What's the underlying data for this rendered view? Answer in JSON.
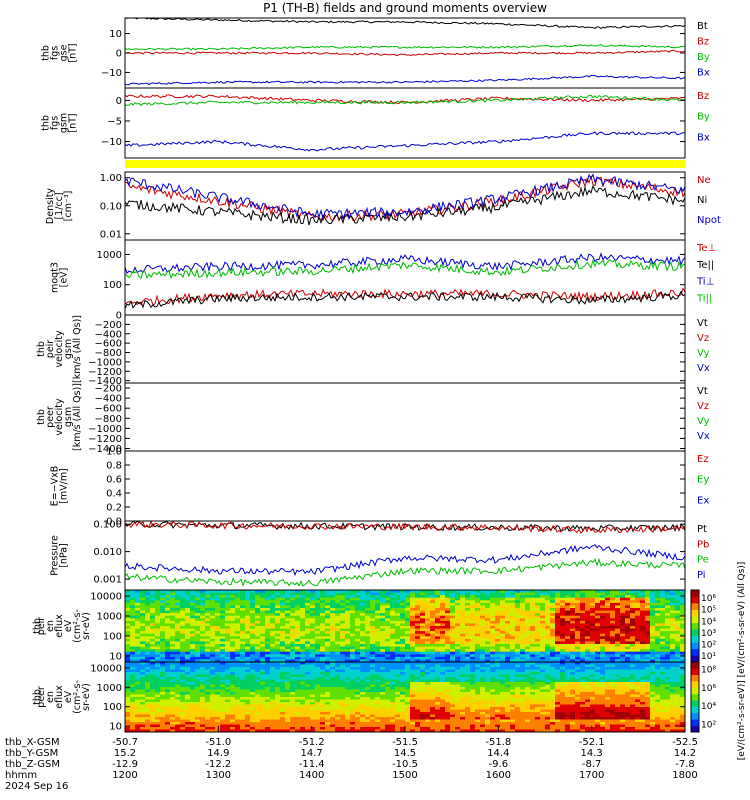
{
  "title": "P1 (TH-B) fields and ground moments overview",
  "panels": [
    {
      "id": "fgs-gse",
      "ylabel": [
        "thb",
        "fgs",
        "gse",
        "[nT]"
      ],
      "ticks": [
        "10",
        "0",
        "−10"
      ],
      "tick_values": [
        10,
        0,
        -10
      ],
      "ylim": [
        -18,
        18
      ],
      "legend": [
        {
          "label": "Bt",
          "color": "#000000"
        },
        {
          "label": "Bz",
          "color": "#cc0000"
        },
        {
          "label": "By",
          "color": "#00bb00"
        },
        {
          "label": "Bx",
          "color": "#0000cc"
        }
      ]
    },
    {
      "id": "fgs-gsm",
      "ylabel": [
        "thb",
        "fgs",
        "gsm",
        "[nT]"
      ],
      "ticks": [
        "0",
        "−5",
        "−10"
      ],
      "tick_values": [
        0,
        -5,
        -10
      ],
      "ylim": [
        -14,
        3
      ],
      "legend": [
        {
          "label": "Bz",
          "color": "#cc0000"
        },
        {
          "label": "By",
          "color": "#00bb00"
        },
        {
          "label": "Bx",
          "color": "#0000cc"
        }
      ]
    },
    {
      "id": "density",
      "ylabel": [
        "Density",
        "[1/cc]",
        "[cm⁻³]"
      ],
      "ticks": [
        "1.00",
        "0.10",
        "0.01"
      ],
      "tick_values": [
        1.0,
        0.1,
        0.01
      ],
      "scale": "log",
      "ylim": [
        0.006,
        1.6
      ],
      "legend": [
        {
          "label": "Ne",
          "color": "#cc0000"
        },
        {
          "label": "Ni",
          "color": "#000000"
        },
        {
          "label": "Npot",
          "color": "#0000cc"
        }
      ]
    },
    {
      "id": "temperature",
      "ylabel": [
        "moqt3",
        "[eV]"
      ],
      "ticks": [
        "1000",
        "100"
      ],
      "tick_values": [
        1000,
        100
      ],
      "scale": "log",
      "ylim": [
        10,
        3000
      ],
      "legend": [
        {
          "label": "Te⊥",
          "color": "#cc0000"
        },
        {
          "label": "Te||",
          "color": "#000000"
        },
        {
          "label": "Ti⊥",
          "color": "#0000cc"
        },
        {
          "label": "Ti||",
          "color": "#00bb00"
        }
      ]
    },
    {
      "id": "peir-velocity",
      "ylabel": [
        "thb",
        "peir",
        "velocity",
        "gsm",
        "[km/s (All Qs)]"
      ],
      "ticks": [
        "0",
        "−200",
        "−400",
        "−600",
        "−800",
        "−1000",
        "−1200",
        "−1400"
      ],
      "tick_values": [
        0,
        -200,
        -400,
        -600,
        -800,
        -1000,
        -1200,
        -1400
      ],
      "ylim": [
        -1450,
        0
      ],
      "legend": [
        {
          "label": "Vt",
          "color": "#000000"
        },
        {
          "label": "Vz",
          "color": "#cc0000"
        },
        {
          "label": "Vy",
          "color": "#00bb00"
        },
        {
          "label": "Vx",
          "color": "#0000cc"
        }
      ]
    },
    {
      "id": "peer-velocity",
      "ylabel": [
        "thb",
        "peer",
        "velocity",
        "gsm",
        "[km/s (All Qs)]"
      ],
      "ticks": [
        "−200",
        "−400",
        "−600",
        "−800",
        "−1000",
        "−1200",
        "−1400"
      ],
      "tick_values": [
        -200,
        -400,
        -600,
        -800,
        -1000,
        -1200,
        -1400
      ],
      "ylim": [
        -1450,
        -100
      ],
      "legend": [
        {
          "label": "Vt",
          "color": "#000000"
        },
        {
          "label": "Vz",
          "color": "#cc0000"
        },
        {
          "label": "Vy",
          "color": "#00bb00"
        },
        {
          "label": "Vx",
          "color": "#0000cc"
        }
      ]
    },
    {
      "id": "efield",
      "ylabel": [
        "E=−VxB",
        "[mV/m]"
      ],
      "ticks": [
        "1.0",
        "0.8",
        "0.6",
        "0.4",
        "0.2",
        "0.0"
      ],
      "tick_values": [
        1.0,
        0.8,
        0.6,
        0.4,
        0.2,
        0.0
      ],
      "ylim": [
        0,
        1.0
      ],
      "legend": [
        {
          "label": "Ez",
          "color": "#cc0000"
        },
        {
          "label": "Ey",
          "color": "#00bb00"
        },
        {
          "label": "Ex",
          "color": "#0000cc"
        }
      ]
    },
    {
      "id": "pressure",
      "ylabel": [
        "Pressure",
        "[nPa]"
      ],
      "ticks": [
        "0.100",
        "0.010",
        "0.001"
      ],
      "tick_values": [
        0.1,
        0.01,
        0.001
      ],
      "scale": "log",
      "ylim": [
        0.0004,
        0.13
      ],
      "legend": [
        {
          "label": "Pt",
          "color": "#000000"
        },
        {
          "label": "Pb",
          "color": "#cc0000"
        },
        {
          "label": "Pe",
          "color": "#00bb00"
        },
        {
          "label": "Pi",
          "color": "#0000cc"
        }
      ]
    },
    {
      "id": "peir-spectrogram",
      "ylabel": [
        "thb",
        "peir",
        "en",
        "eflux",
        "eV",
        "(cm²-s-",
        "sr-eV)"
      ],
      "ticks": [
        "10000",
        "1000",
        "100",
        "10"
      ],
      "tick_values": [
        10000,
        1000,
        100,
        10
      ],
      "scale": "log",
      "ylim": [
        5,
        20000
      ]
    },
    {
      "id": "peer-spectrogram",
      "ylabel": [
        "thb",
        "peer",
        "en",
        "eflux",
        "eV",
        "(cm²-s-",
        "sr-eV)"
      ],
      "ticks": [
        "10000",
        "1000",
        "100",
        "10"
      ],
      "tick_values": [
        10000,
        1000,
        100,
        10
      ],
      "scale": "log",
      "ylim": [
        5,
        20000
      ]
    }
  ],
  "yellow_bar_color": "#ffff00",
  "colorbars": [
    {
      "ticks": [
        "10⁶",
        "10⁵",
        "10⁴",
        "10³",
        "10²",
        "10¹"
      ],
      "tick_values": [
        6,
        5,
        4,
        3,
        2,
        1
      ],
      "range": [
        0.5,
        6.7
      ]
    },
    {
      "ticks": [
        "10⁸",
        "10⁶",
        "10⁴",
        "10²"
      ],
      "tick_values": [
        8,
        6,
        4,
        2
      ],
      "range": [
        1.2,
        8.8
      ]
    }
  ],
  "colorbar_label": "[eV/(cm²-s-sr-eV)] [eV/(cm²-s-sr-eV) (All Qs)]",
  "x_axis": {
    "row_labels": [
      "thb_X-GSM",
      "thb_Y-GSM",
      "thb_Z-GSM",
      "hhmm"
    ],
    "date_label": "2024 Sep 16",
    "columns": [
      {
        "x": "-50.7",
        "y": "15.2",
        "z": "-12.9",
        "t": "1200"
      },
      {
        "x": "-51.0",
        "y": "14.9",
        "z": "-12.2",
        "t": "1300"
      },
      {
        "x": "-51.2",
        "y": "14.7",
        "z": "-11.4",
        "t": "1400"
      },
      {
        "x": "-51.5",
        "y": "14.5",
        "z": "-10.5",
        "t": "1500"
      },
      {
        "x": "-51.8",
        "y": "14.4",
        "z": "-9.6",
        "t": "1600"
      },
      {
        "x": "-52.1",
        "y": "14.3",
        "z": "-8.7",
        "t": "1700"
      },
      {
        "x": "-52.5",
        "y": "14.2",
        "z": "-7.8",
        "t": "1800"
      }
    ]
  },
  "chart_data": {
    "type": "line",
    "title": "P1 (TH-B) fields and ground moments overview",
    "x_label": "hhmm",
    "x_range": [
      "1200",
      "1800"
    ],
    "x_ticks": [
      "1200",
      "1300",
      "1400",
      "1500",
      "1600",
      "1700",
      "1800"
    ],
    "date": "2024 Sep 16",
    "series": [
      {
        "panel": "fgs-gse",
        "name": "Bt",
        "x": [
          "1200",
          "1300",
          "1400",
          "1500",
          "1600",
          "1700",
          "1800"
        ],
        "values": [
          18,
          17,
          16,
          16,
          15,
          13,
          14
        ]
      },
      {
        "panel": "fgs-gse",
        "name": "Bz",
        "x": [
          "1200",
          "1300",
          "1400",
          "1500",
          "1600",
          "1700",
          "1800"
        ],
        "values": [
          0,
          0,
          0,
          -1,
          0,
          0,
          1
        ]
      },
      {
        "panel": "fgs-gse",
        "name": "By",
        "x": [
          "1200",
          "1300",
          "1400",
          "1500",
          "1600",
          "1700",
          "1800"
        ],
        "values": [
          2,
          2,
          3,
          3,
          3,
          4,
          3
        ]
      },
      {
        "panel": "fgs-gse",
        "name": "Bx",
        "x": [
          "1200",
          "1300",
          "1400",
          "1500",
          "1600",
          "1700",
          "1800"
        ],
        "values": [
          -16,
          -15,
          -15,
          -15,
          -14,
          -12,
          -13
        ]
      },
      {
        "panel": "fgs-gsm",
        "name": "Bz",
        "x": [
          "1200",
          "1300",
          "1400",
          "1500",
          "1600",
          "1700",
          "1800"
        ],
        "values": [
          1,
          1,
          0,
          -0.5,
          0.5,
          0,
          0.5
        ]
      },
      {
        "panel": "fgs-gsm",
        "name": "By",
        "x": [
          "1200",
          "1300",
          "1400",
          "1500",
          "1600",
          "1700",
          "1800"
        ],
        "values": [
          -1,
          -0.5,
          -0.5,
          -0.5,
          0,
          1,
          0
        ]
      },
      {
        "panel": "fgs-gsm",
        "name": "Bx",
        "x": [
          "1200",
          "1300",
          "1400",
          "1500",
          "1600",
          "1700",
          "1800"
        ],
        "values": [
          -11,
          -10,
          -12,
          -11,
          -10,
          -8,
          -8
        ]
      },
      {
        "panel": "density",
        "name": "Ne",
        "x": [
          "1200",
          "1300",
          "1400",
          "1500",
          "1600",
          "1700",
          "1800"
        ],
        "values": [
          0.5,
          0.15,
          0.04,
          0.05,
          0.15,
          0.8,
          0.3
        ]
      },
      {
        "panel": "density",
        "name": "Ni",
        "x": [
          "1200",
          "1300",
          "1400",
          "1500",
          "1600",
          "1700",
          "1800"
        ],
        "values": [
          0.12,
          0.06,
          0.03,
          0.04,
          0.09,
          0.35,
          0.15
        ]
      },
      {
        "panel": "density",
        "name": "Npot",
        "x": [
          "1200",
          "1300",
          "1400",
          "1500",
          "1600",
          "1700",
          "1800"
        ],
        "values": [
          0.8,
          0.2,
          0.05,
          0.06,
          0.18,
          0.9,
          0.35
        ]
      },
      {
        "panel": "temperature",
        "name": "Te⊥",
        "x": [
          "1200",
          "1300",
          "1400",
          "1500",
          "1600",
          "1700",
          "1800"
        ],
        "values": [
          25,
          45,
          50,
          50,
          50,
          40,
          55
        ]
      },
      {
        "panel": "temperature",
        "name": "Te||",
        "x": [
          "1200",
          "1300",
          "1400",
          "1500",
          "1600",
          "1700",
          "1800"
        ],
        "values": [
          20,
          35,
          40,
          40,
          40,
          30,
          45
        ]
      },
      {
        "panel": "temperature",
        "name": "Ti⊥",
        "x": [
          "1200",
          "1300",
          "1400",
          "1500",
          "1600",
          "1700",
          "1800"
        ],
        "values": [
          300,
          400,
          450,
          700,
          400,
          800,
          600
        ]
      },
      {
        "panel": "temperature",
        "name": "Ti||",
        "x": [
          "1200",
          "1300",
          "1400",
          "1500",
          "1600",
          "1700",
          "1800"
        ],
        "values": [
          200,
          250,
          280,
          450,
          260,
          500,
          400
        ]
      },
      {
        "panel": "pressure",
        "name": "Pt",
        "x": [
          "1200",
          "1300",
          "1400",
          "1500",
          "1600",
          "1700",
          "1800"
        ],
        "values": [
          0.1,
          0.09,
          0.085,
          0.08,
          0.075,
          0.07,
          0.075
        ]
      },
      {
        "panel": "pressure",
        "name": "Pb",
        "x": [
          "1200",
          "1300",
          "1400",
          "1500",
          "1600",
          "1700",
          "1800"
        ],
        "values": [
          0.1,
          0.09,
          0.085,
          0.08,
          0.075,
          0.06,
          0.07
        ]
      },
      {
        "panel": "pressure",
        "name": "Pe",
        "x": [
          "1200",
          "1300",
          "1400",
          "1500",
          "1600",
          "1700",
          "1800"
        ],
        "values": [
          0.0012,
          0.0008,
          0.0007,
          0.002,
          0.002,
          0.004,
          0.003
        ]
      },
      {
        "panel": "pressure",
        "name": "Pi",
        "x": [
          "1200",
          "1300",
          "1400",
          "1500",
          "1600",
          "1700",
          "1800"
        ],
        "values": [
          0.003,
          0.002,
          0.0018,
          0.006,
          0.005,
          0.015,
          0.006
        ]
      }
    ]
  }
}
